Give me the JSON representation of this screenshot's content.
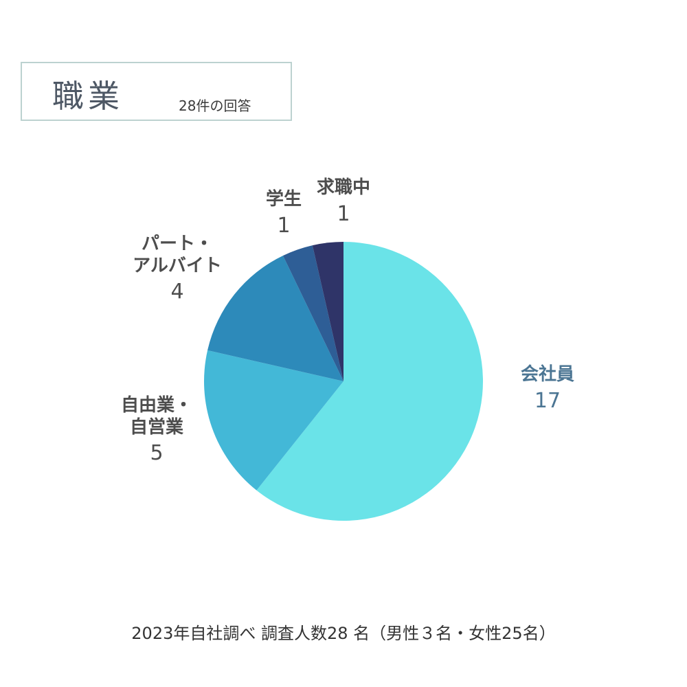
{
  "header": {
    "title": "職業",
    "subtitle": "28件の回答"
  },
  "footnote": "2023年自社調べ 調査人数28 名（男性３名・女性25名）",
  "chart_data": {
    "type": "pie",
    "title": "職業",
    "subtitle": "28件の回答",
    "slices": [
      {
        "label": "会社員",
        "value": 17,
        "color": "#6ae3e8"
      },
      {
        "label": "自由業・自営業",
        "label_lines": [
          "自由業・",
          "自営業"
        ],
        "value": 5,
        "color": "#43b8d7"
      },
      {
        "label": "パート・アルバイト",
        "label_lines": [
          "パート・",
          "アルバイト"
        ],
        "value": 4,
        "color": "#2d8aba"
      },
      {
        "label": "学生",
        "value": 1,
        "color": "#2e5e96"
      },
      {
        "label": "求職中",
        "value": 1,
        "color": "#2f3468"
      }
    ],
    "start": "12 o'clock",
    "direction": "clockwise",
    "legend": "none"
  }
}
